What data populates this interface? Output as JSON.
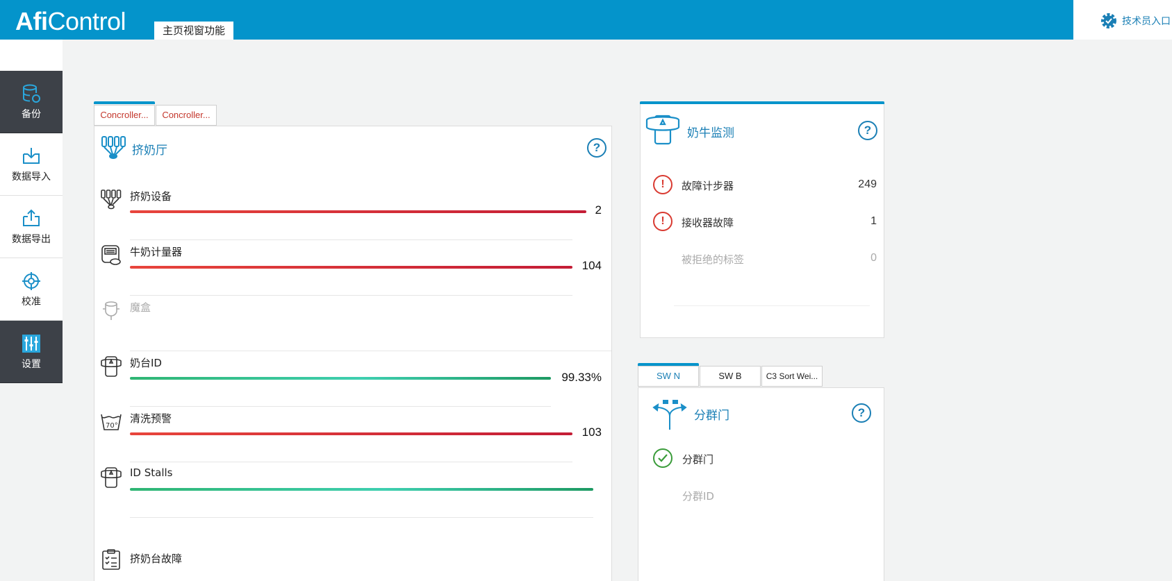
{
  "app": {
    "brand_bold": "Afi",
    "brand_light": "Control"
  },
  "header": {
    "main_tab": "主页视窗功能",
    "tech_entry": "技术员入口"
  },
  "sidebar": {
    "items": [
      {
        "label": "备份",
        "icon": "database-icon"
      },
      {
        "label": "数据导入",
        "icon": "import-icon"
      },
      {
        "label": "数据导出",
        "icon": "export-icon"
      },
      {
        "label": "校准",
        "icon": "crosshair-icon"
      },
      {
        "label": "设置",
        "icon": "sliders-icon"
      }
    ]
  },
  "parlor": {
    "tabs": [
      "Concroller...",
      "Concroller..."
    ],
    "title": "挤奶厅",
    "help": "?",
    "rows": [
      {
        "label": "挤奶设备",
        "value": "2"
      },
      {
        "label": "牛奶计量器",
        "value": "104"
      },
      {
        "label": "魔盒",
        "value": ""
      },
      {
        "label": "奶台ID",
        "value": "99.33%"
      },
      {
        "label": "清洗预警",
        "value": "103"
      },
      {
        "label": "ID Stalls",
        "value": ""
      },
      {
        "label": "挤奶台故障",
        "value": ""
      }
    ]
  },
  "monitor": {
    "title": "奶牛监测",
    "help": "?",
    "rows": [
      {
        "label": "故障计步器",
        "value": "249",
        "status": "error"
      },
      {
        "label": "接收器故障",
        "value": "1",
        "status": "error"
      },
      {
        "label": "被拒绝的标签",
        "value": "0",
        "status": "none"
      }
    ]
  },
  "sorting": {
    "tabs": [
      "SW N",
      "SW B",
      "C3 Sort Wei..."
    ],
    "title": "分群门",
    "help": "?",
    "rows": [
      {
        "label": "分群门",
        "status": "ok"
      },
      {
        "label": "分群ID",
        "status": "none"
      }
    ]
  },
  "colors": {
    "accent": "#0494cb",
    "error": "#d93a31",
    "ok": "#3a9c3a",
    "sidebar_dark": "#3d4148"
  }
}
